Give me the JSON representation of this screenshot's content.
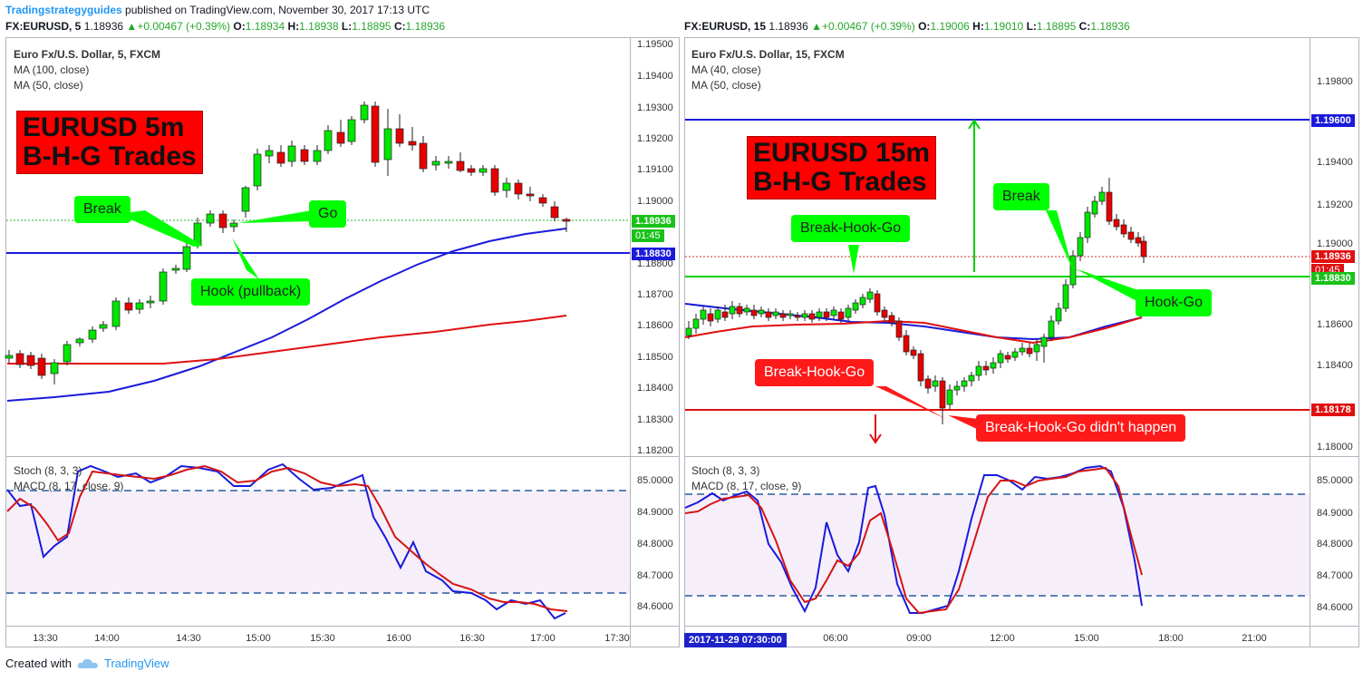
{
  "header": {
    "author": "Tradingstrategyguides",
    "published": "published on TradingView.com, November 30, 2017 17:13 UTC"
  },
  "left": {
    "ohlc": {
      "symbol": "FX:EURUSD, 5",
      "price": "1.18936",
      "change": "+0.00467 (+0.39%)",
      "o_label": "O:",
      "o": "1.18934",
      "h_label": "H:",
      "h": "1.18938",
      "l_label": "L:",
      "l": "1.18895",
      "c_label": "C:",
      "c": "1.18936"
    },
    "legend": {
      "title": "Euro Fx/U.S. Dollar, 5, FXCM",
      "ma1": "MA (100, close)",
      "ma2": "MA (50, close)"
    },
    "title_line1": "EURUSD 5m",
    "title_line2": "B-H-G Trades",
    "labels": {
      "break": "Break",
      "go": "Go",
      "hook": "Hook (pullback)"
    },
    "price_ticks": [
      "1.19500",
      "1.19400",
      "1.19300",
      "1.19200",
      "1.19100",
      "1.19000",
      "1.18800",
      "1.18700",
      "1.18600",
      "1.18500",
      "1.18400",
      "1.18300",
      "1.18200"
    ],
    "badge_price": "1.18936",
    "badge_countdown": "01:45",
    "badge_level": "1.18830",
    "osc_legend": {
      "stoch": "Stoch (8, 3, 3)",
      "macd": "MACD (8, 17, close, 9)"
    },
    "osc_ticks": [
      "85.0000",
      "84.9000",
      "84.8000",
      "84.7000",
      "84.6000"
    ],
    "time_ticks": [
      "13:30",
      "14:00",
      "14:30",
      "15:00",
      "15:30",
      "16:00",
      "16:30",
      "17:00",
      "17:30"
    ]
  },
  "right": {
    "ohlc": {
      "symbol": "FX:EURUSD, 15",
      "price": "1.18936",
      "change": "+0.00467 (+0.39%)",
      "o_label": "O:",
      "o": "1.19006",
      "h_label": "H:",
      "h": "1.19010",
      "l_label": "L:",
      "l": "1.18895",
      "c_label": "C:",
      "c": "1.18936"
    },
    "legend": {
      "title": "Euro Fx/U.S. Dollar, 15, FXCM",
      "ma1": "MA (40, close)",
      "ma2": "MA (50, close)"
    },
    "title_line1": "EURUSD 15m",
    "title_line2": "B-H-G Trades",
    "labels": {
      "break": "Break",
      "bhg_green": "Break-Hook-Go",
      "hookgo": "Hook-Go",
      "bhg_red": "Break-Hook-Go",
      "didnt": "Break-Hook-Go didn't happen"
    },
    "price_ticks": [
      "1.19800",
      "1.19400",
      "1.19200",
      "1.19000",
      "1.18600",
      "1.18400",
      "1.18000"
    ],
    "badge_top": "1.19600",
    "badge_price": "1.18936",
    "badge_countdown": "01:45",
    "badge_level": "1.18830",
    "badge_low": "1.18178",
    "osc_legend": {
      "stoch": "Stoch (8, 3, 3)",
      "macd": "MACD (8, 17, close, 9)"
    },
    "osc_ticks": [
      "85.0000",
      "84.9000",
      "84.8000",
      "84.7000",
      "84.6000"
    ],
    "date_badge": "2017-11-29 07:30:00",
    "time_ticks": [
      "06:00",
      "09:00",
      "12:00",
      "15:00",
      "18:00",
      "21:00"
    ]
  },
  "footer": {
    "created": "Created with",
    "brand": "TradingView"
  },
  "colors": {
    "up": "#00e600",
    "down": "#e60000",
    "ma_blue": "#1a1adb",
    "ma_red": "#e01010",
    "level_blue": "#1a1adb",
    "green_line": "#00d000"
  }
}
